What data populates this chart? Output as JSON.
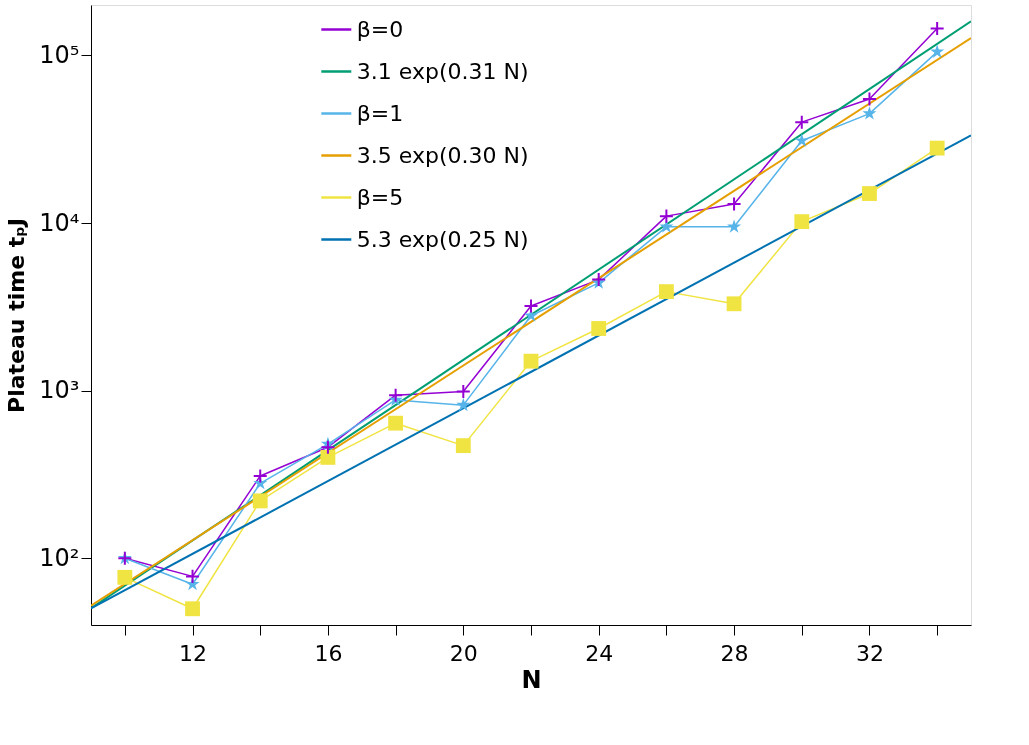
{
  "chart_data": {
    "type": "line",
    "xlabel": "N",
    "ylabel": "Plateau time tₚJ",
    "log": "y",
    "xlim": [
      9,
      35
    ],
    "ylim": [
      40,
      200000
    ],
    "xticks": [
      {
        "value": 10,
        "label": null
      },
      12,
      {
        "value": 14,
        "label": null
      },
      16,
      {
        "value": 18,
        "label": null
      },
      20,
      {
        "value": 22,
        "label": null
      },
      24,
      {
        "value": 26,
        "label": null
      },
      28,
      {
        "value": 30,
        "label": null
      },
      32,
      {
        "value": 34,
        "label": null
      }
    ],
    "yticks": [
      {
        "value": 100,
        "label": "10²"
      },
      {
        "value": 1000,
        "label": "10³"
      },
      {
        "value": 10000,
        "label": "10⁴"
      },
      {
        "value": 100000,
        "label": "10⁵"
      }
    ],
    "grid": false,
    "legend": "top",
    "series": [
      {
        "name": "β=0",
        "color": "#9400d3",
        "marker": "cross",
        "x": [
          10,
          12,
          14,
          16,
          18,
          20,
          22,
          24,
          26,
          28,
          30,
          32,
          34
        ],
        "values": [
          100,
          78,
          310,
          460,
          940,
          990,
          3200,
          4600,
          11000,
          13000,
          40000,
          55000,
          145000
        ]
      },
      {
        "name": "3.1 exp(0.31 N)",
        "color": "#009e73",
        "marker": "none",
        "x": [
          9,
          35
        ],
        "values": [
          50.4,
          159800
        ]
      },
      {
        "name": "β=1",
        "color": "#56b4e9",
        "marker": "star",
        "x": [
          10,
          12,
          14,
          16,
          18,
          20,
          22,
          24,
          26,
          28,
          30,
          32,
          34
        ],
        "values": [
          100,
          70,
          280,
          480,
          880,
          820,
          2800,
          4400,
          9500,
          9500,
          31000,
          45000,
          105000
        ]
      },
      {
        "name": "3.5 exp(0.30 N)",
        "color": "#e69f00",
        "marker": "none",
        "x": [
          9,
          35
        ],
        "values": [
          52.1,
          127100
        ]
      },
      {
        "name": "β=5",
        "color": "#f0e442",
        "marker": "square",
        "x": [
          10,
          12,
          14,
          16,
          18,
          20,
          22,
          24,
          26,
          28,
          30,
          32,
          34
        ],
        "values": [
          77,
          50,
          220,
          400,
          640,
          470,
          1500,
          2350,
          3900,
          3300,
          10200,
          15000,
          28000
        ]
      },
      {
        "name": "5.3 exp(0.25 N)",
        "color": "#0072b2",
        "marker": "none",
        "x": [
          9,
          35
        ],
        "values": [
          50.2,
          33400
        ]
      }
    ]
  }
}
